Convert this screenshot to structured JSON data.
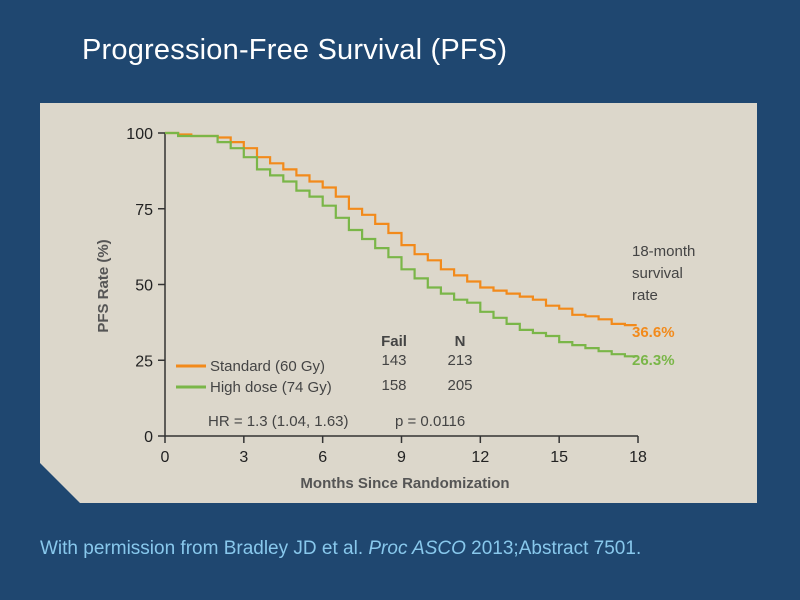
{
  "slide": {
    "title": "Progression-Free Survival (PFS)",
    "citation_pre": "With permission from Bradley JD et al. ",
    "citation_italic": "Proc ASCO",
    "citation_post": " 2013;Abstract 7501."
  },
  "colors": {
    "background": "#1f4770",
    "panel": "#dcd7cb",
    "standard": "#f28a1b",
    "high_dose": "#7ab648",
    "citation": "#88c8ec"
  },
  "chart_data": {
    "type": "line",
    "step": true,
    "xlabel": "Months Since Randomization",
    "ylabel": "PFS Rate (%)",
    "xlim": [
      0,
      18
    ],
    "ylim": [
      0,
      100
    ],
    "xticks": [
      0,
      3,
      6,
      9,
      12,
      15,
      18
    ],
    "yticks": [
      0,
      25,
      50,
      75,
      100
    ],
    "grid": false,
    "legend_position": "bottom-left",
    "table_headers": {
      "fail": "Fail",
      "n": "N"
    },
    "series": [
      {
        "name": "Standard (60 Gy)",
        "color": "#f28a1b",
        "fail": "143",
        "n": "213",
        "end_label": "36.6%",
        "x": [
          0,
          0.5,
          1.0,
          1.5,
          2.0,
          2.5,
          3.0,
          3.5,
          4.0,
          4.5,
          5.0,
          5.5,
          6.0,
          6.5,
          7.0,
          7.5,
          8.0,
          8.5,
          9.0,
          9.5,
          10.0,
          10.5,
          11.0,
          11.5,
          12.0,
          12.5,
          13.0,
          13.5,
          14.0,
          14.5,
          15.0,
          15.5,
          16.0,
          16.5,
          17.0,
          17.5
        ],
        "y": [
          100,
          99.5,
          99,
          99,
          98.5,
          97,
          95,
          92,
          90,
          88,
          86,
          84,
          82,
          79,
          75,
          73,
          70,
          67,
          63,
          60,
          58,
          55,
          53,
          51,
          49,
          48,
          47,
          46,
          45,
          43,
          42,
          40,
          39.5,
          38.5,
          37,
          36.6
        ]
      },
      {
        "name": "High dose (74 Gy)",
        "color": "#7ab648",
        "fail": "158",
        "n": "205",
        "end_label": "26.3%",
        "x": [
          0,
          0.5,
          1.0,
          1.5,
          2.0,
          2.5,
          3.0,
          3.5,
          4.0,
          4.5,
          5.0,
          5.5,
          6.0,
          6.5,
          7.0,
          7.5,
          8.0,
          8.5,
          9.0,
          9.5,
          10.0,
          10.5,
          11.0,
          11.5,
          12.0,
          12.5,
          13.0,
          13.5,
          14.0,
          14.5,
          15.0,
          15.5,
          16.0,
          16.5,
          17.0,
          17.5
        ],
        "y": [
          100,
          99,
          99,
          99,
          97,
          95,
          92,
          88,
          86,
          84,
          81,
          79,
          76,
          72,
          68,
          65,
          62,
          59,
          55,
          52,
          49,
          47,
          45,
          44,
          41,
          39,
          37,
          35,
          34,
          33,
          31,
          30,
          29,
          28,
          27,
          26.3
        ]
      }
    ],
    "annotations": {
      "survival_note_lines": [
        "18-month",
        "survival",
        "rate"
      ],
      "hr_text": "HR = 1.3 (1.04, 1.63)",
      "p_text": "p = 0.0116"
    }
  }
}
